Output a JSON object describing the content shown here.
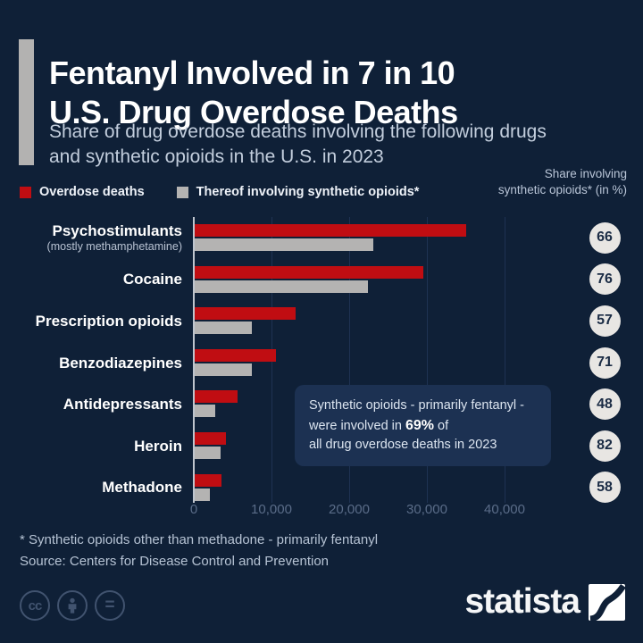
{
  "header": {
    "title_line1": "Fentanyl Involved in 7 in 10",
    "title_line2": "U.S. Drug Overdose Deaths",
    "subtitle_line1": "Share of drug overdose deaths involving the following drugs",
    "subtitle_line2": "and synthetic opioids in the U.S. in 2023"
  },
  "legend": {
    "items": [
      {
        "label": "Overdose deaths",
        "color": "#c00d12"
      },
      {
        "label": "Thereof involving synthetic opioids*",
        "color": "#b4b3b2"
      }
    ],
    "right_note_line1": "Share involving",
    "right_note_line2": "synthetic opioids* (in %)"
  },
  "chart_data": {
    "type": "bar",
    "orientation": "horizontal",
    "title": "Fentanyl Involved in 7 in 10 U.S. Drug Overdose Deaths",
    "categories": [
      "Psychostimulants",
      "Cocaine",
      "Prescription opioids",
      "Benzodiazepines",
      "Antidepressants",
      "Heroin",
      "Methadone"
    ],
    "category_sublabels": [
      "(mostly methamphetamine)",
      "",
      "",
      "",
      "",
      "",
      ""
    ],
    "series": [
      {
        "name": "Overdose deaths",
        "color": "#c00d12",
        "values": [
          34900,
          29400,
          13000,
          10400,
          5500,
          4000,
          3500
        ]
      },
      {
        "name": "Thereof involving synthetic opioids*",
        "color": "#b4b3b2",
        "values": [
          23000,
          22300,
          7400,
          7400,
          2600,
          3300,
          2000
        ]
      }
    ],
    "share_involving_synthetic_pct": [
      66,
      76,
      57,
      71,
      48,
      82,
      58
    ],
    "x_ticks": [
      0,
      10000,
      20000,
      30000,
      40000
    ],
    "x_tick_labels": [
      "0",
      "10,000",
      "20,000",
      "30,000",
      "40,000"
    ],
    "xlim": [
      0,
      45000
    ],
    "grid": true,
    "legend_position": "top-left"
  },
  "annotation": {
    "line1": "Synthetic opioids - primarily fentanyl -",
    "line2_pre": "were involved in ",
    "line2_bold": "69%",
    "line2_post": " of",
    "line3": "all drug overdose deaths in 2023"
  },
  "footer": {
    "footnote": "* Synthetic opioids other than methadone - primarily fentanyl",
    "source": "Source: Centers for Disease Control and Prevention",
    "cc_label": "cc",
    "equal_label": "=",
    "brand": "statista"
  }
}
